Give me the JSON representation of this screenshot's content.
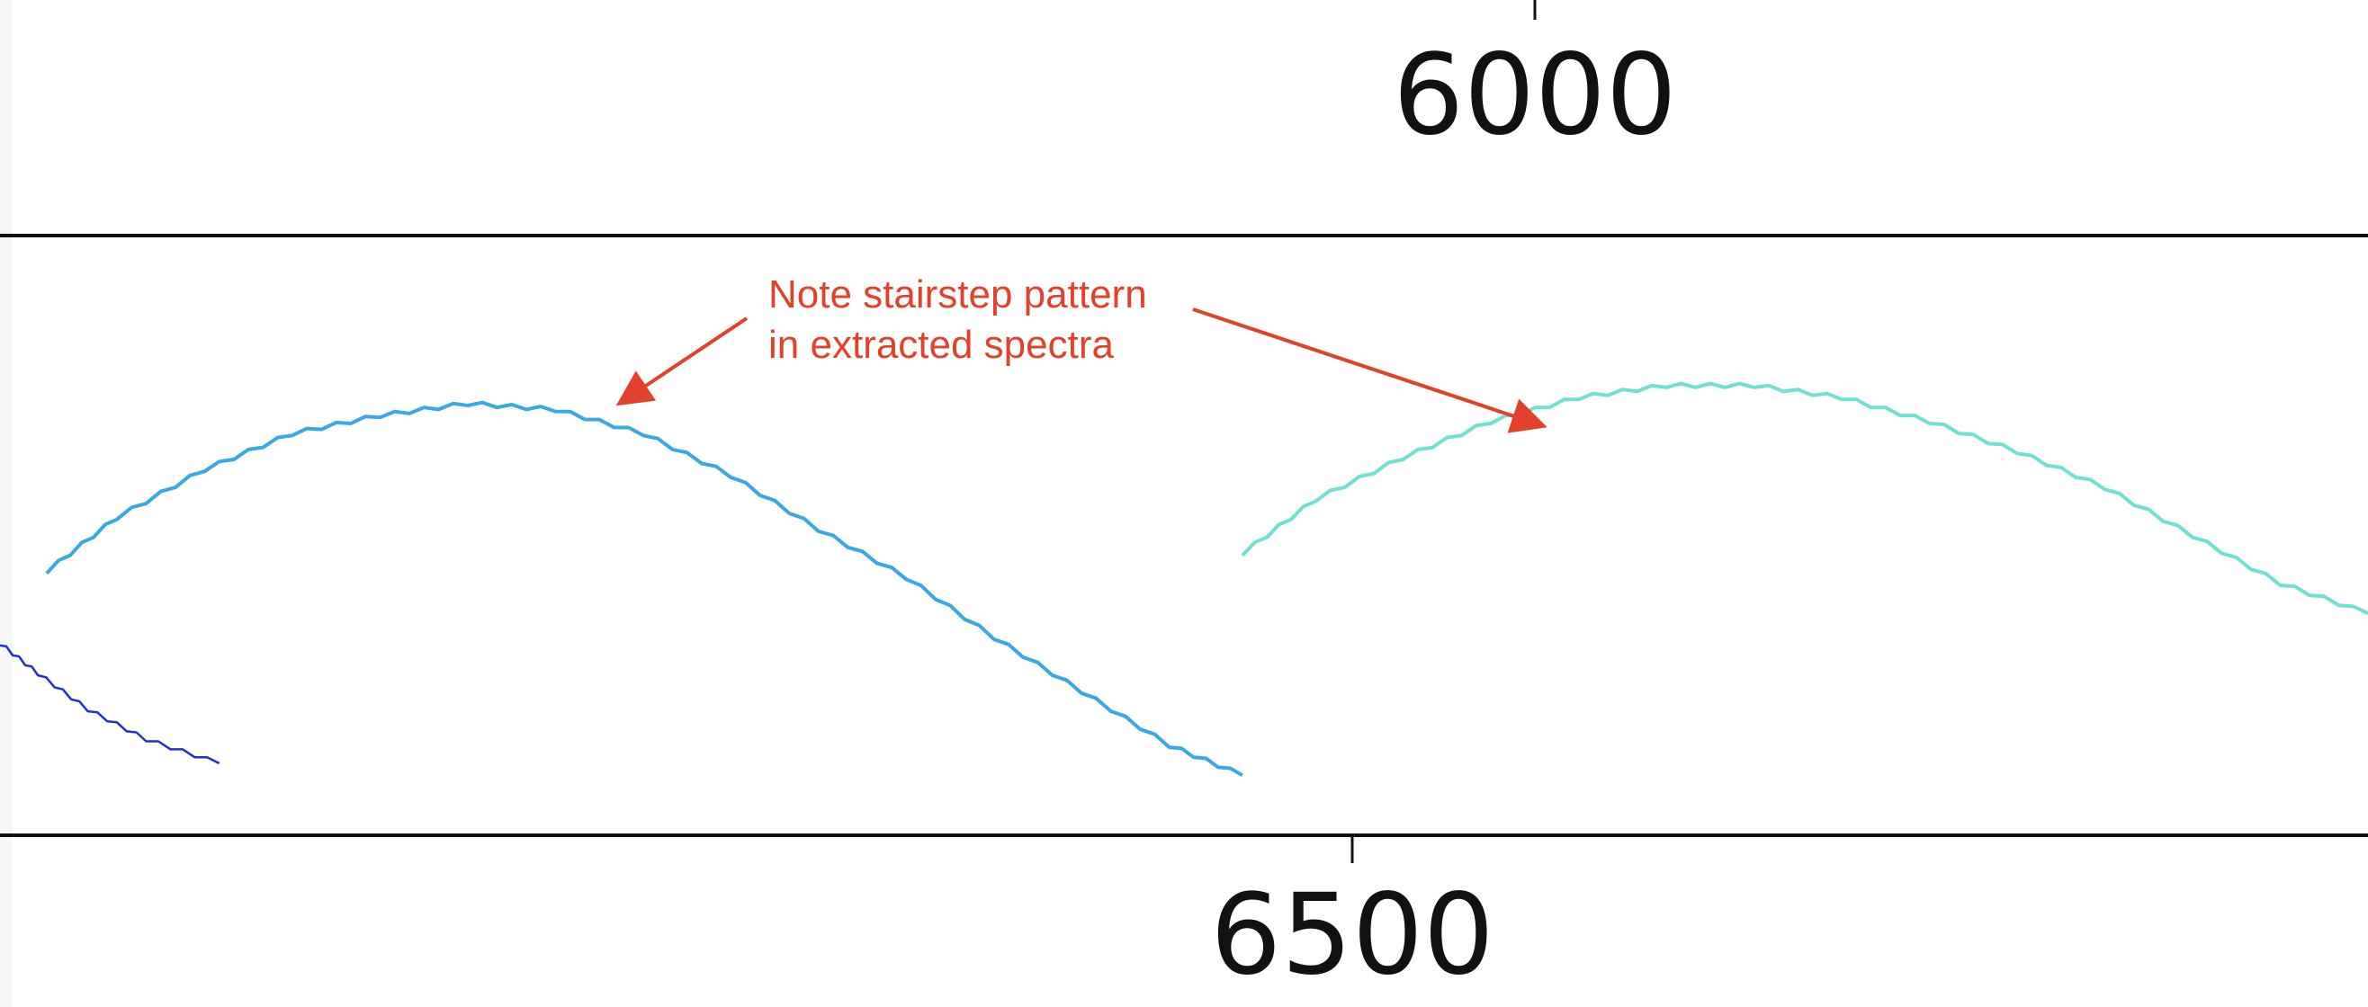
{
  "chart_data": [
    {
      "type": "line",
      "panel": "upper",
      "x_ticks": [
        6000
      ],
      "x_tick_labels": [
        "6000"
      ],
      "series": []
    },
    {
      "type": "line",
      "panel": "lower",
      "x_ticks": [
        6500
      ],
      "x_tick_labels": [
        "6500"
      ],
      "xlim": [
        6100,
        6910
      ],
      "ylim": [
        0,
        1
      ],
      "grid": false,
      "series": [
        {
          "color": "#1f2fd9",
          "x": [
            6100,
            6113,
            6130,
            6150,
            6175
          ],
          "y": [
            0.32,
            0.27,
            0.21,
            0.16,
            0.12
          ]
        },
        {
          "color": "#3aa8e4",
          "x": [
            6116,
            6140,
            6170,
            6200,
            6230,
            6260,
            6290,
            6320,
            6350,
            6380,
            6410,
            6440,
            6470,
            6500,
            6525
          ],
          "y": [
            0.44,
            0.53,
            0.61,
            0.67,
            0.7,
            0.72,
            0.71,
            0.67,
            0.6,
            0.51,
            0.43,
            0.33,
            0.24,
            0.15,
            0.1
          ]
        },
        {
          "color": "#6fe0d2",
          "x": [
            6525,
            6550,
            6580,
            6610,
            6640,
            6670,
            6700,
            6730,
            6760,
            6790,
            6820,
            6850,
            6880,
            6910
          ],
          "y": [
            0.47,
            0.56,
            0.63,
            0.69,
            0.73,
            0.75,
            0.75,
            0.73,
            0.69,
            0.64,
            0.58,
            0.5,
            0.42,
            0.37
          ]
        }
      ],
      "annotations": [
        {
          "lines": [
            "Note stairstep pattern",
            "in extracted spectra"
          ],
          "color": "#e2412b"
        }
      ]
    }
  ]
}
